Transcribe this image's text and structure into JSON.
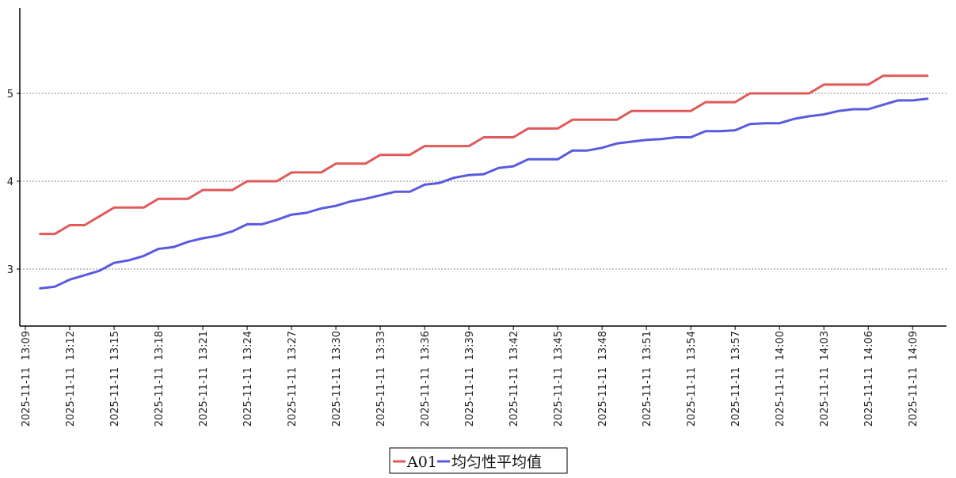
{
  "chart_data": {
    "type": "line",
    "title": "",
    "xlabel": "",
    "ylabel": "",
    "ylim": [
      2.4,
      5.9
    ],
    "y_ticks": [
      3,
      4,
      5
    ],
    "grid": "horizontal dotted",
    "legend_position": "bottom-center",
    "x_tick_labels": [
      "2025-11-11 13:09",
      "2025-11-11 13:12",
      "2025-11-11 13:15",
      "2025-11-11 13:18",
      "2025-11-11 13:21",
      "2025-11-11 13:24",
      "2025-11-11 13:27",
      "2025-11-11 13:30",
      "2025-11-11 13:33",
      "2025-11-11 13:36",
      "2025-11-11 13:39",
      "2025-11-11 13:42",
      "2025-11-11 13:45",
      "2025-11-11 13:48",
      "2025-11-11 13:51",
      "2025-11-11 13:54",
      "2025-11-11 13:57",
      "2025-11-11 14:00",
      "2025-11-11 14:03",
      "2025-11-11 14:06",
      "2025-11-11 14:09"
    ],
    "x": [
      "13:10",
      "13:11",
      "13:12",
      "13:13",
      "13:14",
      "13:15",
      "13:16",
      "13:17",
      "13:18",
      "13:19",
      "13:20",
      "13:21",
      "13:22",
      "13:23",
      "13:24",
      "13:25",
      "13:26",
      "13:27",
      "13:28",
      "13:29",
      "13:30",
      "13:31",
      "13:32",
      "13:33",
      "13:34",
      "13:35",
      "13:36",
      "13:37",
      "13:38",
      "13:39",
      "13:40",
      "13:41",
      "13:42",
      "13:43",
      "13:44",
      "13:45",
      "13:46",
      "13:47",
      "13:48",
      "13:49",
      "13:50",
      "13:51",
      "13:52",
      "13:53",
      "13:54",
      "13:55",
      "13:56",
      "13:57",
      "13:58",
      "13:59",
      "14:00",
      "14:01",
      "14:02",
      "14:03",
      "14:04",
      "14:05",
      "14:06",
      "14:07",
      "14:08",
      "14:09",
      "14:10"
    ],
    "series": [
      {
        "name": "A01",
        "color": "#e05a5a",
        "values": [
          3.4,
          3.4,
          3.5,
          3.5,
          3.6,
          3.7,
          3.7,
          3.7,
          3.8,
          3.8,
          3.8,
          3.9,
          3.9,
          3.9,
          4.0,
          4.0,
          4.0,
          4.1,
          4.1,
          4.1,
          4.2,
          4.2,
          4.2,
          4.3,
          4.3,
          4.3,
          4.4,
          4.4,
          4.4,
          4.4,
          4.5,
          4.5,
          4.5,
          4.6,
          4.6,
          4.6,
          4.7,
          4.7,
          4.7,
          4.7,
          4.8,
          4.8,
          4.8,
          4.8,
          4.8,
          4.9,
          4.9,
          4.9,
          5.0,
          5.0,
          5.0,
          5.0,
          5.0,
          5.1,
          5.1,
          5.1,
          5.1,
          5.2,
          5.2,
          5.2,
          5.2
        ]
      },
      {
        "name": "均匀性平均值",
        "color": "#5a5ae0",
        "values": [
          2.78,
          2.8,
          2.88,
          2.93,
          2.98,
          3.07,
          3.1,
          3.15,
          3.23,
          3.25,
          3.31,
          3.35,
          3.38,
          3.43,
          3.51,
          3.51,
          3.56,
          3.62,
          3.64,
          3.69,
          3.72,
          3.77,
          3.8,
          3.84,
          3.88,
          3.88,
          3.96,
          3.98,
          4.04,
          4.07,
          4.08,
          4.15,
          4.17,
          4.25,
          4.25,
          4.25,
          4.35,
          4.35,
          4.38,
          4.43,
          4.45,
          4.47,
          4.48,
          4.5,
          4.5,
          4.57,
          4.57,
          4.58,
          4.65,
          4.66,
          4.66,
          4.71,
          4.74,
          4.76,
          4.8,
          4.82,
          4.82,
          4.87,
          4.92,
          4.92,
          4.94
        ]
      }
    ]
  }
}
